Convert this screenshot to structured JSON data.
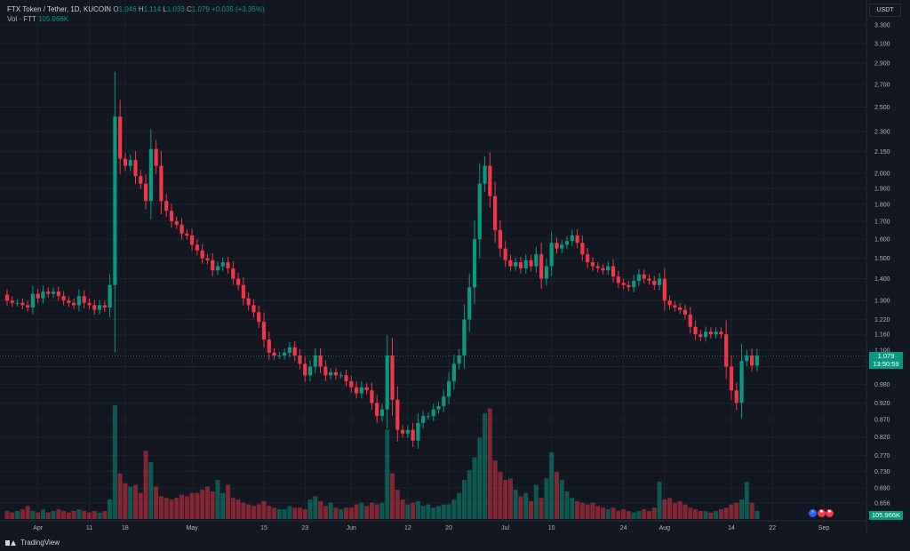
{
  "header": {
    "symbol": "FTX Token / Tether, 1D, KUCOIN",
    "o_label": "O",
    "o_value": "1.046",
    "h_label": "H",
    "h_value": "1.114",
    "l_label": "L",
    "l_value": "1.033",
    "c_label": "C",
    "c_value": "1.079",
    "change": "+0.035 (+3.35%)",
    "vol_label": "Vol · FTT",
    "vol_value": "105.966K"
  },
  "currency": "USDT",
  "price_tag": "1.079",
  "countdown_tag": "13:50:59",
  "volume_tag": "105.966K",
  "brand": "TradingView",
  "event_icons": [
    "lightning-icon",
    "flag-icon",
    "flag-icon"
  ],
  "colors": {
    "up": "#089981",
    "down": "#f23645",
    "bg": "#131722",
    "grid": "#1e222d",
    "text": "#b2b5be"
  },
  "chart_data": {
    "type": "candlestick",
    "y_axis": {
      "scale": "log",
      "ticks": [
        "3.300",
        "3.100",
        "2.900",
        "2.700",
        "2.500",
        "2.300",
        "2.150",
        "2.000",
        "1.900",
        "1.800",
        "1.700",
        "1.600",
        "1.500",
        "1.400",
        "1.300",
        "1.220",
        "1.160",
        "1.100",
        "1.040",
        "0.980",
        "0.920",
        "0.870",
        "0.820",
        "0.770",
        "0.730",
        "0.690",
        "0.656"
      ]
    },
    "x_axis": {
      "start_date": "2022-03-26",
      "ticks": [
        {
          "label": "Apr",
          "date": "2022-04-01"
        },
        {
          "label": "11",
          "date": "2022-04-11"
        },
        {
          "label": "18",
          "date": "2022-04-18"
        },
        {
          "label": "May",
          "date": "2022-05-01"
        },
        {
          "label": "15",
          "date": "2022-05-15"
        },
        {
          "label": "23",
          "date": "2022-05-23"
        },
        {
          "label": "Jun",
          "date": "2022-06-01"
        },
        {
          "label": "12",
          "date": "2022-06-12"
        },
        {
          "label": "20",
          "date": "2022-06-20"
        },
        {
          "label": "Jul",
          "date": "2022-07-01"
        },
        {
          "label": "10",
          "date": "2022-07-10"
        },
        {
          "label": "24",
          "date": "2022-07-24"
        },
        {
          "label": "Aug",
          "date": "2022-08-01"
        },
        {
          "label": "14",
          "date": "2022-08-14"
        },
        {
          "label": "22",
          "date": "2022-08-22"
        },
        {
          "label": "Sep",
          "date": "2022-09-01"
        }
      ]
    },
    "last_close": 1.079,
    "closes": [
      1.3,
      1.29,
      1.29,
      1.28,
      1.27,
      1.33,
      1.31,
      1.34,
      1.33,
      1.34,
      1.32,
      1.3,
      1.29,
      1.28,
      1.32,
      1.29,
      1.28,
      1.26,
      1.28,
      1.27,
      1.37,
      2.42,
      2.1,
      2.05,
      2.09,
      1.98,
      1.93,
      1.82,
      2.17,
      2.05,
      1.82,
      1.76,
      1.7,
      1.68,
      1.63,
      1.62,
      1.57,
      1.54,
      1.5,
      1.49,
      1.44,
      1.46,
      1.48,
      1.45,
      1.4,
      1.37,
      1.31,
      1.28,
      1.25,
      1.21,
      1.14,
      1.09,
      1.08,
      1.08,
      1.09,
      1.11,
      1.08,
      1.05,
      1.01,
      1.04,
      1.08,
      1.04,
      1.01,
      1.02,
      1.01,
      1.01,
      0.99,
      0.97,
      0.95,
      0.97,
      0.96,
      0.92,
      0.88,
      0.9,
      1.08,
      0.93,
      0.84,
      0.83,
      0.84,
      0.81,
      0.86,
      0.88,
      0.88,
      0.9,
      0.91,
      0.94,
      0.99,
      1.05,
      1.08,
      1.22,
      1.36,
      1.6,
      1.93,
      2.05,
      1.85,
      1.65,
      1.55,
      1.49,
      1.46,
      1.48,
      1.45,
      1.49,
      1.46,
      1.52,
      1.4,
      1.46,
      1.58,
      1.55,
      1.57,
      1.59,
      1.62,
      1.58,
      1.52,
      1.48,
      1.46,
      1.45,
      1.44,
      1.46,
      1.41,
      1.38,
      1.37,
      1.36,
      1.39,
      1.42,
      1.4,
      1.39,
      1.37,
      1.4,
      1.3,
      1.28,
      1.27,
      1.26,
      1.24,
      1.19,
      1.16,
      1.15,
      1.17,
      1.16,
      1.17,
      1.16,
      1.04,
      0.96,
      0.92,
      1.06,
      1.08,
      1.044,
      1.079
    ],
    "volumes": [
      0.5,
      0.4,
      0.5,
      0.6,
      0.8,
      0.5,
      0.4,
      0.6,
      0.4,
      0.5,
      0.6,
      0.5,
      0.4,
      0.5,
      0.6,
      0.5,
      0.4,
      0.5,
      0.4,
      0.5,
      1.2,
      7.0,
      2.8,
      2.2,
      2.0,
      2.1,
      1.6,
      4.2,
      3.5,
      2.0,
      1.4,
      1.3,
      1.2,
      1.3,
      1.5,
      1.4,
      1.6,
      1.6,
      1.8,
      2.0,
      1.7,
      2.4,
      1.6,
      2.1,
      1.3,
      1.2,
      1.0,
      0.9,
      0.8,
      0.9,
      1.1,
      0.8,
      0.7,
      0.6,
      0.6,
      0.8,
      0.7,
      0.7,
      0.6,
      1.2,
      1.4,
      1.1,
      0.8,
      1.0,
      0.7,
      0.6,
      0.7,
      0.7,
      0.9,
      1.0,
      0.8,
      1.0,
      0.9,
      1.0,
      5.5,
      2.8,
      1.8,
      1.2,
      0.9,
      1.0,
      1.1,
      0.8,
      0.9,
      0.7,
      0.8,
      0.9,
      0.9,
      1.2,
      1.6,
      2.4,
      3.0,
      3.8,
      5.0,
      6.5,
      6.8,
      3.6,
      2.9,
      2.4,
      2.5,
      1.8,
      1.4,
      1.6,
      1.1,
      2.1,
      1.3,
      2.5,
      4.1,
      2.9,
      2.4,
      1.7,
      1.3,
      1.1,
      1.0,
      0.9,
      1.0,
      0.8,
      0.7,
      0.6,
      0.7,
      0.5,
      0.6,
      0.5,
      0.4,
      0.5,
      0.6,
      0.5,
      0.7,
      2.3,
      1.2,
      1.3,
      1.0,
      1.1,
      0.9,
      0.7,
      0.6,
      0.5,
      0.5,
      0.4,
      0.5,
      0.6,
      0.7,
      0.9,
      1.0,
      1.2,
      2.3,
      1.0,
      0.5
    ]
  }
}
